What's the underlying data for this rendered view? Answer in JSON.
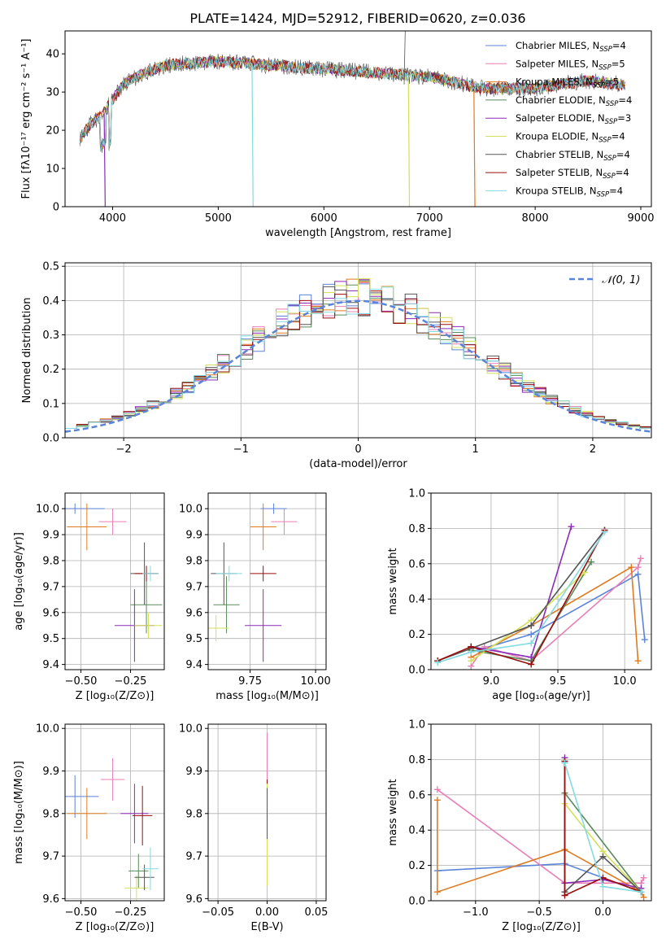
{
  "figure": {
    "title": "PLATE=1424, MJD=52912, FIBERID=0620, z=0.036"
  },
  "colors": {
    "Chabrier MILES": "#5b84d9",
    "Salpeter MILES": "#e87fb7",
    "Kroupa MILES": "#e07a1e",
    "Chabrier ELODIE": "#5a8a5a",
    "Salpeter ELODIE": "#8b2ab5",
    "Kroupa ELODIE": "#d3e05a",
    "Chabrier STELIB": "#555555",
    "Salpeter STELIB": "#9a0d0d",
    "Kroupa STELIB": "#82dbe0"
  },
  "chart_data": [
    {
      "id": "spectrum",
      "type": "line",
      "xlabel": "wavelength [Angstrom, rest frame]",
      "ylabel": "Flux [fλ10⁻¹⁷ erg cm⁻² s⁻¹ A⁻¹]",
      "xlim": [
        3550,
        9100
      ],
      "ylim": [
        0,
        46
      ],
      "xticks": [
        4000,
        5000,
        6000,
        7000,
        8000,
        9000
      ],
      "yticks": [
        0,
        10,
        20,
        30,
        40
      ],
      "legend_position": "top-right",
      "legend": [
        "Chabrier MILES, N_SSP=4",
        "Salpeter MILES, N_SSP=5",
        "Kroupa MILES, N_SSP=5",
        "Chabrier ELODIE, N_SSP=4",
        "Salpeter ELODIE, N_SSP=3",
        "Kroupa ELODIE, N_SSP=4",
        "Chabrier STELIB, N_SSP=4",
        "Salpeter STELIB, N_SSP=4",
        "Kroupa STELIB, N_SSP=4"
      ],
      "continuum": {
        "x": [
          3700,
          3800,
          3900,
          4000,
          4100,
          4300,
          4500,
          5000,
          5500,
          6000,
          6500,
          7000,
          7500,
          8000,
          8500,
          8800
        ],
        "y": [
          18,
          22,
          24,
          28,
          32,
          35,
          37,
          38,
          37,
          36,
          35,
          34,
          31,
          31,
          33,
          32
        ]
      },
      "dips": [
        {
          "name": "Salpeter ELODIE",
          "x": 3920,
          "y": 0
        },
        {
          "name": "Kroupa STELIB",
          "x": 5320,
          "y": 0
        },
        {
          "name": "Kroupa ELODIE",
          "x": 6800,
          "y": 0
        },
        {
          "name": "Kroupa MILES",
          "x": 7420,
          "y": 0
        }
      ],
      "data_range": [
        3690,
        8850
      ]
    },
    {
      "id": "residual-histogram",
      "type": "line",
      "xlabel": "(data-model)/error",
      "ylabel": "Normed distribution",
      "xlim": [
        -2.5,
        2.5
      ],
      "ylim": [
        0,
        0.51
      ],
      "xticks": [
        -2,
        -1,
        0,
        1,
        2
      ],
      "yticks": [
        0.0,
        0.1,
        0.2,
        0.3,
        0.4,
        0.5
      ],
      "reference": {
        "label": "𝒩(0, 1)",
        "mu": 0,
        "sigma": 1
      },
      "legend_position": "top-right",
      "bin_width": 0.1
    },
    {
      "id": "age-vs-Z",
      "type": "scatter",
      "xlabel": "Z [log₁₀(Z/Z⊙)]",
      "ylabel": "age  [log₁₀(age/yr)]",
      "xlim": [
        -0.58,
        -0.08
      ],
      "ylim": [
        9.38,
        10.06
      ],
      "xticks": [
        -0.5,
        -0.25
      ],
      "yticks": [
        9.4,
        9.5,
        9.6,
        9.7,
        9.8,
        9.9,
        10.0
      ],
      "points": [
        {
          "name": "Chabrier MILES",
          "x": -0.53,
          "xerr": 0.15,
          "y": 10.0,
          "yerr": 0.02
        },
        {
          "name": "Salpeter MILES",
          "x": -0.34,
          "xerr": 0.07,
          "y": 9.95,
          "yerr": 0.05
        },
        {
          "name": "Kroupa MILES",
          "x": -0.47,
          "xerr": 0.1,
          "y": 9.93,
          "yerr": 0.09
        },
        {
          "name": "Chabrier ELODIE",
          "x": -0.17,
          "xerr": 0.08,
          "y": 9.63,
          "yerr": 0.11
        },
        {
          "name": "Salpeter ELODIE",
          "x": -0.23,
          "xerr": 0.1,
          "y": 9.55,
          "yerr": 0.14
        },
        {
          "name": "Kroupa ELODIE",
          "x": -0.16,
          "xerr": 0.07,
          "y": 9.55,
          "yerr": 0.05
        },
        {
          "name": "Chabrier STELIB",
          "x": -0.18,
          "xerr": 0.07,
          "y": 9.75,
          "yerr": 0.12
        },
        {
          "name": "Salpeter STELIB",
          "x": -0.17,
          "xerr": 0.06,
          "y": 9.75,
          "yerr": 0.03
        },
        {
          "name": "Kroupa STELIB",
          "x": -0.15,
          "xerr": 0.04,
          "y": 9.75,
          "yerr": 0.03
        }
      ]
    },
    {
      "id": "age-vs-mass",
      "type": "scatter",
      "xlabel": "mass [log₁₀(M/M⊙)]",
      "ylabel": "",
      "xlim": [
        9.59,
        10.04
      ],
      "ylim": [
        9.38,
        10.06
      ],
      "xticks": [
        9.75,
        10.0
      ],
      "yticks": [
        9.4,
        9.5,
        9.6,
        9.7,
        9.8,
        9.9,
        10.0
      ],
      "points": [
        {
          "name": "Chabrier MILES",
          "x": 9.84,
          "xerr": 0.05,
          "y": 10.0,
          "yerr": 0.02
        },
        {
          "name": "Salpeter MILES",
          "x": 9.88,
          "xerr": 0.05,
          "y": 9.95,
          "yerr": 0.05
        },
        {
          "name": "Kroupa MILES",
          "x": 9.8,
          "xerr": 0.05,
          "y": 9.93,
          "yerr": 0.09
        },
        {
          "name": "Chabrier ELODIE",
          "x": 9.66,
          "xerr": 0.05,
          "y": 9.63,
          "yerr": 0.11
        },
        {
          "name": "Salpeter ELODIE",
          "x": 9.8,
          "xerr": 0.07,
          "y": 9.55,
          "yerr": 0.14
        },
        {
          "name": "Kroupa ELODIE",
          "x": 9.62,
          "xerr": 0.05,
          "y": 9.54,
          "yerr": 0.05
        },
        {
          "name": "Chabrier STELIB",
          "x": 9.65,
          "xerr": 0.05,
          "y": 9.75,
          "yerr": 0.12
        },
        {
          "name": "Salpeter STELIB",
          "x": 9.8,
          "xerr": 0.05,
          "y": 9.75,
          "yerr": 0.03
        },
        {
          "name": "Kroupa STELIB",
          "x": 9.67,
          "xerr": 0.05,
          "y": 9.75,
          "yerr": 0.03
        }
      ]
    },
    {
      "id": "weight-vs-age",
      "type": "line",
      "xlabel": "age  [log₁₀(age/yr)]",
      "ylabel": "mass weight",
      "xlim": [
        8.55,
        10.2
      ],
      "ylim": [
        0,
        1
      ],
      "xticks": [
        9.0,
        9.5,
        10.0
      ],
      "yticks": [
        0.0,
        0.2,
        0.4,
        0.6,
        0.8,
        1.0
      ],
      "series": [
        {
          "name": "Chabrier MILES",
          "x": [
            8.85,
            9.3,
            10.1,
            10.15
          ],
          "y": [
            0.1,
            0.2,
            0.54,
            0.17
          ]
        },
        {
          "name": "Salpeter MILES",
          "x": [
            8.85,
            8.95,
            9.3,
            10.1,
            10.12
          ],
          "y": [
            0.02,
            0.13,
            0.05,
            0.58,
            0.63
          ]
        },
        {
          "name": "Kroupa MILES",
          "x": [
            8.85,
            9.3,
            10.05,
            10.1
          ],
          "y": [
            0.07,
            0.25,
            0.58,
            0.05
          ]
        },
        {
          "name": "Chabrier ELODIE",
          "x": [
            8.85,
            9.3,
            9.75
          ],
          "y": [
            0.11,
            0.05,
            0.61
          ]
        },
        {
          "name": "Salpeter ELODIE",
          "x": [
            8.85,
            9.3,
            9.6
          ],
          "y": [
            0.13,
            0.07,
            0.81
          ]
        },
        {
          "name": "Kroupa ELODIE",
          "x": [
            8.85,
            9.3,
            9.7
          ],
          "y": [
            0.05,
            0.28,
            0.55
          ]
        },
        {
          "name": "Chabrier STELIB",
          "x": [
            8.6,
            8.85,
            9.3,
            9.85
          ],
          "y": [
            0.05,
            0.12,
            0.25,
            0.79
          ]
        },
        {
          "name": "Salpeter STELIB",
          "x": [
            8.6,
            8.85,
            9.3,
            9.85
          ],
          "y": [
            0.05,
            0.13,
            0.03,
            0.79
          ]
        },
        {
          "name": "Kroupa STELIB",
          "x": [
            8.6,
            8.85,
            9.3,
            9.85
          ],
          "y": [
            0.04,
            0.1,
            0.15,
            0.78
          ]
        }
      ]
    },
    {
      "id": "mass-vs-Z",
      "type": "scatter",
      "xlabel": "Z [log₁₀(Z/Z⊙)]",
      "ylabel": "mass [log₁₀(M/M⊙)]",
      "xlim": [
        -0.58,
        -0.08
      ],
      "ylim": [
        9.595,
        10.01
      ],
      "xticks": [
        -0.5,
        -0.25
      ],
      "yticks": [
        9.6,
        9.7,
        9.8,
        9.9,
        10.0
      ],
      "points": [
        {
          "name": "Chabrier MILES",
          "x": -0.53,
          "xerr": 0.12,
          "y": 9.84,
          "yerr": 0.05
        },
        {
          "name": "Salpeter MILES",
          "x": -0.34,
          "xerr": 0.06,
          "y": 9.88,
          "yerr": 0.05
        },
        {
          "name": "Kroupa MILES",
          "x": -0.47,
          "xerr": 0.1,
          "y": 9.8,
          "yerr": 0.06
        },
        {
          "name": "Chabrier ELODIE",
          "x": -0.21,
          "xerr": 0.05,
          "y": 9.665,
          "yerr": 0.04
        },
        {
          "name": "Salpeter ELODIE",
          "x": -0.23,
          "xerr": 0.07,
          "y": 9.8,
          "yerr": 0.07
        },
        {
          "name": "Kroupa ELODIE",
          "x": -0.22,
          "xerr": 0.06,
          "y": 9.625,
          "yerr": 0.03
        },
        {
          "name": "Chabrier STELIB",
          "x": -0.18,
          "xerr": 0.05,
          "y": 9.65,
          "yerr": 0.03
        },
        {
          "name": "Salpeter STELIB",
          "x": -0.19,
          "xerr": 0.05,
          "y": 9.795,
          "yerr": 0.07
        },
        {
          "name": "Kroupa STELIB",
          "x": -0.15,
          "xerr": 0.04,
          "y": 9.67,
          "yerr": 0.05
        }
      ]
    },
    {
      "id": "mass-vs-ebv",
      "type": "scatter",
      "xlabel": "E(B-V)",
      "ylabel": "",
      "xlim": [
        -0.06,
        0.06
      ],
      "ylim": [
        9.595,
        10.01
      ],
      "xticks": [
        -0.05,
        0.0,
        0.05
      ],
      "yticks": [
        9.6,
        9.7,
        9.8,
        9.9,
        10.0
      ],
      "points": [
        {
          "name": "Salpeter MILES",
          "x": 0,
          "y": 9.88,
          "yerr": 0.11
        },
        {
          "name": "Salpeter STELIB",
          "x": 0,
          "y": 9.8,
          "yerr": 0.08
        },
        {
          "name": "Kroupa ELODIE",
          "x": 0,
          "y": 9.75,
          "yerr": 0.12
        },
        {
          "name": "Chabrier STELIB",
          "x": 0,
          "y": 9.8,
          "yerr": 0.06
        }
      ]
    },
    {
      "id": "weight-vs-Z",
      "type": "line",
      "xlabel": "Z [log₁₀(Z/Z⊙)]",
      "ylabel": "mass weight",
      "xlim": [
        -1.35,
        0.38
      ],
      "ylim": [
        0,
        1
      ],
      "xticks": [
        -1.0,
        -0.5,
        0.0
      ],
      "yticks": [
        0.0,
        0.2,
        0.4,
        0.6,
        0.8,
        1.0
      ],
      "series": [
        {
          "name": "Chabrier MILES",
          "x": [
            -1.3,
            -0.3,
            0.3
          ],
          "y": [
            0.17,
            0.21,
            0.05
          ]
        },
        {
          "name": "Salpeter MILES",
          "x": [
            -1.3,
            -0.3,
            0.3,
            0.32
          ],
          "y": [
            0.63,
            0.1,
            0.1,
            0.13
          ]
        },
        {
          "name": "Kroupa MILES",
          "x": [
            -1.3,
            -1.3,
            -0.3,
            0.3,
            0.32
          ],
          "y": [
            0.57,
            0.05,
            0.29,
            0.05,
            0.02
          ]
        },
        {
          "name": "Chabrier ELODIE",
          "x": [
            -0.3,
            -0.3,
            0.3
          ],
          "y": [
            0.05,
            0.61,
            0.05
          ]
        },
        {
          "name": "Salpeter ELODIE",
          "x": [
            -0.3,
            -0.3,
            0.0,
            0.3
          ],
          "y": [
            0.81,
            0.1,
            0.12,
            0.07
          ]
        },
        {
          "name": "Kroupa ELODIE",
          "x": [
            -0.3,
            0.0,
            0.3
          ],
          "y": [
            0.55,
            0.28,
            0.05
          ]
        },
        {
          "name": "Chabrier STELIB",
          "x": [
            -0.3,
            -0.3,
            0.0,
            0.3
          ],
          "y": [
            0.79,
            0.05,
            0.25,
            0.05
          ]
        },
        {
          "name": "Salpeter STELIB",
          "x": [
            -0.3,
            -0.3,
            0.0,
            0.3
          ],
          "y": [
            0.79,
            0.03,
            0.13,
            0.05
          ]
        },
        {
          "name": "Kroupa STELIB",
          "x": [
            -0.3,
            0.0,
            0.3
          ],
          "y": [
            0.78,
            0.08,
            0.05
          ]
        }
      ]
    }
  ]
}
